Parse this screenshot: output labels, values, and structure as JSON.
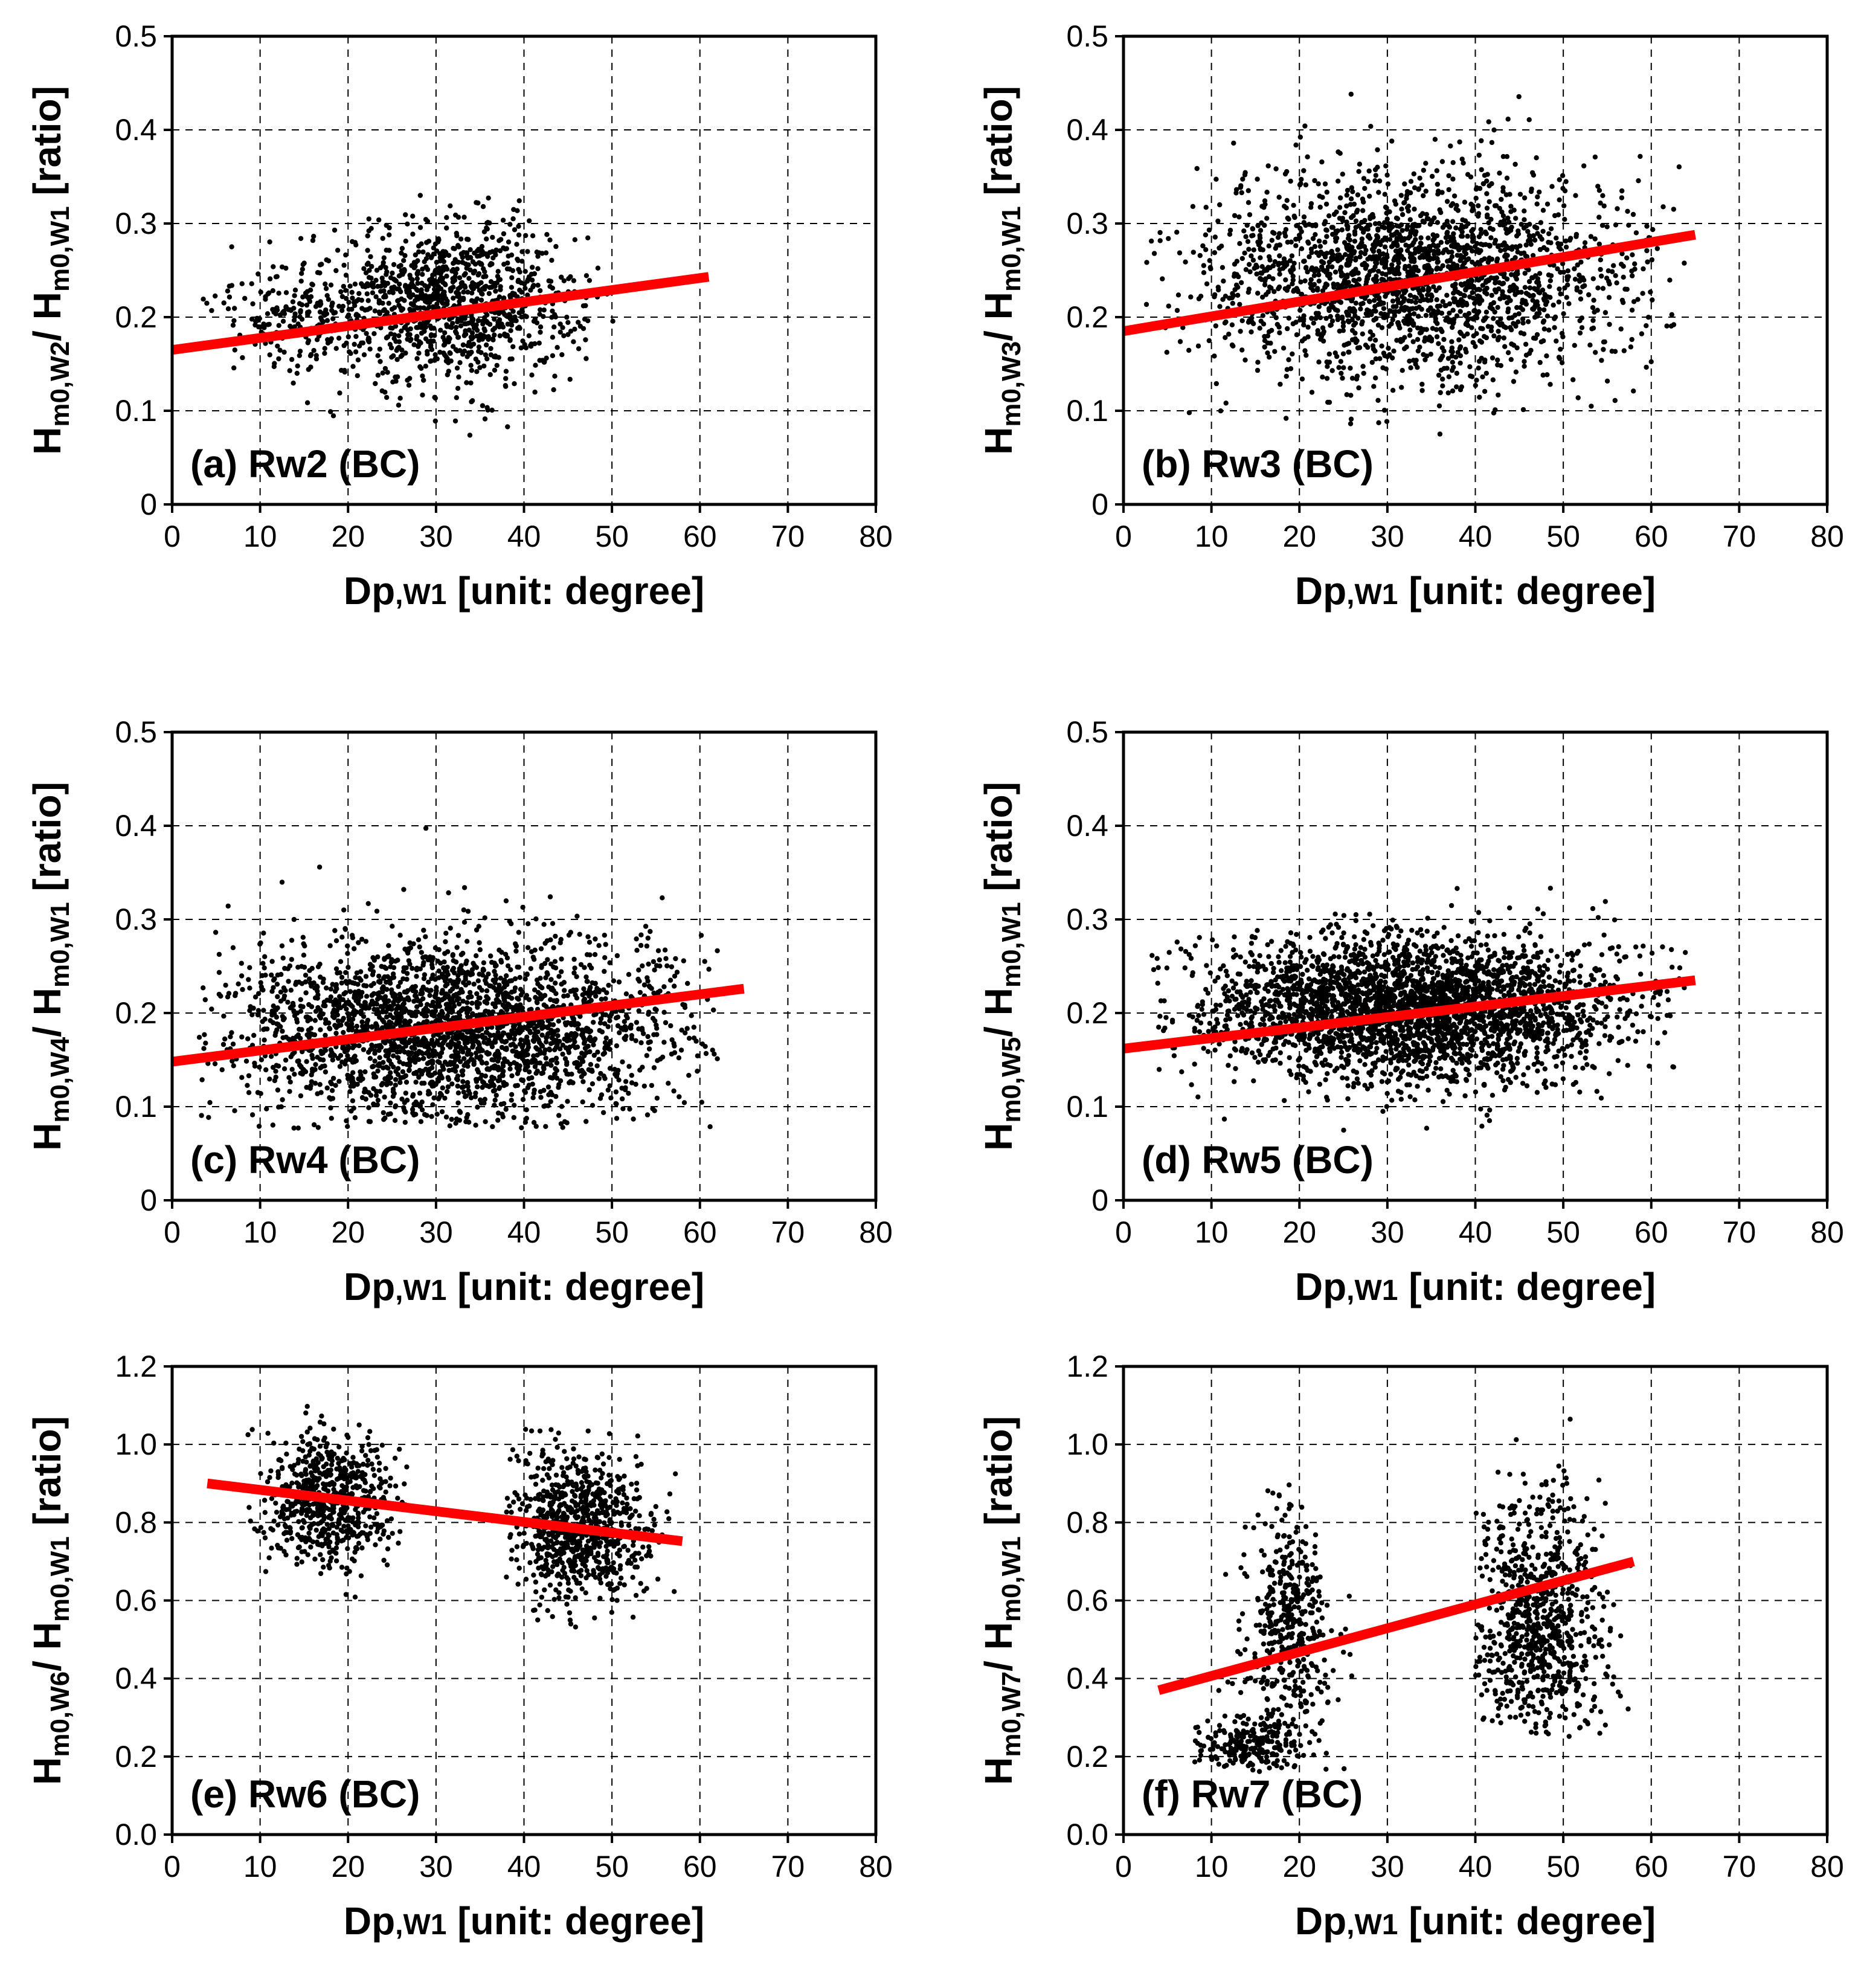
{
  "colors": {
    "points": "#000000",
    "trend": "#ff0000"
  },
  "chart_data": [
    {
      "type": "scatter",
      "id": "a",
      "label": "(a) Rw2 (BC)",
      "xlabel": "Dp,w1 [unit: degree]",
      "ylabel": "Hm0,W2/ Hm0,W1 [ratio]",
      "ysub": "W2",
      "xlim": [
        0,
        80
      ],
      "ylim": [
        0,
        0.5
      ],
      "xticks": [
        "0",
        "10",
        "20",
        "30",
        "40",
        "50",
        "60",
        "70",
        "80"
      ],
      "yticks": [
        "0",
        "0.1",
        "0.2",
        "0.3",
        "0.4",
        "0.5"
      ],
      "trend": {
        "x": [
          0,
          61
        ],
        "y": [
          0.165,
          0.243
        ]
      },
      "clusters": [
        {
          "n": 1100,
          "cx": 32,
          "cy": 0.215,
          "sx": 7,
          "sy": 0.042,
          "xmin": 3,
          "xmax": 61,
          "ymin": 0.05,
          "ymax": 0.355
        },
        {
          "n": 200,
          "cx": 14,
          "cy": 0.205,
          "sx": 5,
          "sy": 0.03,
          "xmin": 3,
          "xmax": 61,
          "ymin": 0.1,
          "ymax": 0.3
        }
      ]
    },
    {
      "type": "scatter",
      "id": "b",
      "label": "(b) Rw3 (BC)",
      "xlabel": "Dp,w1 [unit: degree]",
      "ylabel": "Hm0,W3/ Hm0,W1 [ratio]",
      "ysub": "W3",
      "xlim": [
        0,
        80
      ],
      "ylim": [
        0,
        0.5
      ],
      "xticks": [
        "0",
        "10",
        "20",
        "30",
        "40",
        "50",
        "60",
        "70",
        "80"
      ],
      "yticks": [
        "0",
        "0.1",
        "0.2",
        "0.3",
        "0.4",
        "0.5"
      ],
      "trend": {
        "x": [
          0,
          65
        ],
        "y": [
          0.185,
          0.288
        ]
      },
      "clusters": [
        {
          "n": 2200,
          "cx": 33,
          "cy": 0.245,
          "sx": 12,
          "sy": 0.055,
          "xmin": 2,
          "xmax": 64,
          "ymin": 0.05,
          "ymax": 0.47
        }
      ]
    },
    {
      "type": "scatter",
      "id": "c",
      "label": "(c) Rw4 (BC)",
      "xlabel": "Dp,w1 [unit: degree]",
      "ylabel": "Hm0,W4/ Hm0,W1 [ratio]",
      "ysub": "W4",
      "xlim": [
        0,
        80
      ],
      "ylim": [
        0,
        0.5
      ],
      "xticks": [
        "0",
        "10",
        "20",
        "30",
        "40",
        "50",
        "60",
        "70",
        "80"
      ],
      "yticks": [
        "0",
        "0.1",
        "0.2",
        "0.3",
        "0.4",
        "0.5"
      ],
      "trend": {
        "x": [
          0,
          65
        ],
        "y": [
          0.148,
          0.226
        ]
      },
      "clusters": [
        {
          "n": 2600,
          "cx": 32,
          "cy": 0.185,
          "sx": 13,
          "sy": 0.048,
          "xmin": 3,
          "xmax": 62,
          "ymin": 0.075,
          "ymax": 0.41
        }
      ]
    },
    {
      "type": "scatter",
      "id": "d",
      "label": "(d) Rw5 (BC)",
      "xlabel": "Dp,w1 [unit: degree]",
      "ylabel": "Hm0,W5/ Hm0,W1 [ratio]",
      "ysub": "W5",
      "xlim": [
        0,
        80
      ],
      "ylim": [
        0,
        0.5
      ],
      "xticks": [
        "0",
        "10",
        "20",
        "30",
        "40",
        "50",
        "60",
        "70",
        "80"
      ],
      "yticks": [
        "0",
        "0.1",
        "0.2",
        "0.3",
        "0.4",
        "0.5"
      ],
      "trend": {
        "x": [
          0,
          65
        ],
        "y": [
          0.162,
          0.235
        ]
      },
      "clusters": [
        {
          "n": 3000,
          "cx": 33,
          "cy": 0.205,
          "sx": 12,
          "sy": 0.038,
          "xmin": 3,
          "xmax": 64,
          "ymin": 0.06,
          "ymax": 0.375
        }
      ]
    },
    {
      "type": "scatter",
      "id": "e",
      "label": "(e) Rw6 (BC)",
      "xlabel": "Dp,w1 [unit: degree]",
      "ylabel": "Hm0,W6/ Hm0,W1 [ratio]",
      "ysub": "W6",
      "xlim": [
        0,
        80
      ],
      "ylim": [
        0,
        1.2
      ],
      "xticks": [
        "0",
        "10",
        "20",
        "30",
        "40",
        "50",
        "60",
        "70",
        "80"
      ],
      "yticks": [
        "0.0",
        "0.2",
        "0.4",
        "0.6",
        "0.8",
        "1.0",
        "1.2"
      ],
      "trend": {
        "x": [
          4,
          58
        ],
        "y": [
          0.9,
          0.752
        ]
      },
      "clusters": [
        {
          "n": 650,
          "cx": 18,
          "cy": 0.86,
          "sx": 3.5,
          "sy": 0.085,
          "xmin": 7,
          "xmax": 27,
          "ymin": 0.6,
          "ymax": 1.18
        },
        {
          "n": 800,
          "cx": 46,
          "cy": 0.79,
          "sx": 4,
          "sy": 0.095,
          "xmin": 38,
          "xmax": 58,
          "ymin": 0.53,
          "ymax": 1.05
        }
      ]
    },
    {
      "type": "scatter",
      "id": "f",
      "label": "(f) Rw7 (BC)",
      "xlabel": "Dp,w1 [unit: degree]",
      "ylabel": "Hm0,W7/ Hm0,W1 [ratio]",
      "ysub": "W7",
      "xlim": [
        0,
        80
      ],
      "ylim": [
        0,
        1.2
      ],
      "xticks": [
        "0",
        "10",
        "20",
        "30",
        "40",
        "50",
        "60",
        "70",
        "80"
      ],
      "yticks": [
        "0.0",
        "0.2",
        "0.4",
        "0.6",
        "0.8",
        "1.0",
        "1.2"
      ],
      "trend": {
        "x": [
          4,
          58
        ],
        "y": [
          0.37,
          0.7
        ]
      },
      "clusters": [
        {
          "n": 450,
          "cx": 19,
          "cy": 0.52,
          "sx": 2.5,
          "sy": 0.16,
          "xmin": 10,
          "xmax": 26,
          "ymin": 0.15,
          "ymax": 0.9
        },
        {
          "n": 200,
          "cx": 14,
          "cy": 0.23,
          "sx": 3,
          "sy": 0.04,
          "xmin": 8,
          "xmax": 20,
          "ymin": 0.16,
          "ymax": 0.32
        },
        {
          "n": 800,
          "cx": 47,
          "cy": 0.55,
          "sx": 4,
          "sy": 0.16,
          "xmin": 40,
          "xmax": 58,
          "ymin": 0.25,
          "ymax": 1.16
        }
      ]
    }
  ]
}
